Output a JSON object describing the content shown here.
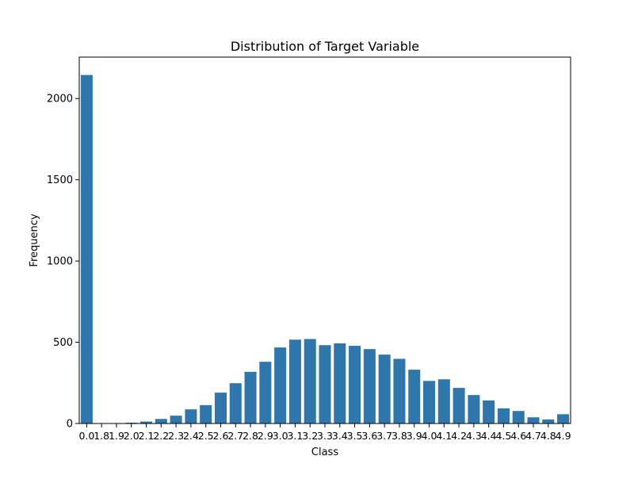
{
  "chart_data": {
    "type": "bar",
    "title": "Distribution of Target Variable",
    "xlabel": "Class",
    "ylabel": "Frequency",
    "ylim": [
      0,
      2255
    ],
    "yticks": [
      0,
      500,
      1000,
      1500,
      2000
    ],
    "categories": [
      "0.0",
      "1.8",
      "1.9",
      "2.0",
      "2.1",
      "2.2",
      "2.3",
      "2.4",
      "2.5",
      "2.6",
      "2.7",
      "2.8",
      "2.9",
      "3.0",
      "3.1",
      "3.2",
      "3.3",
      "3.4",
      "3.5",
      "3.6",
      "3.7",
      "3.8",
      "3.9",
      "4.0",
      "4.1",
      "4.2",
      "4.3",
      "4.4",
      "4.5",
      "4.6",
      "4.7",
      "4.8",
      "4.9"
    ],
    "values": [
      2145,
      1,
      2,
      5,
      12,
      28,
      48,
      87,
      113,
      190,
      248,
      318,
      380,
      468,
      516,
      520,
      482,
      493,
      478,
      458,
      424,
      398,
      331,
      262,
      272,
      219,
      175,
      142,
      93,
      77,
      38,
      25,
      57
    ],
    "bar_color": "#2f76ac",
    "grid": false
  }
}
